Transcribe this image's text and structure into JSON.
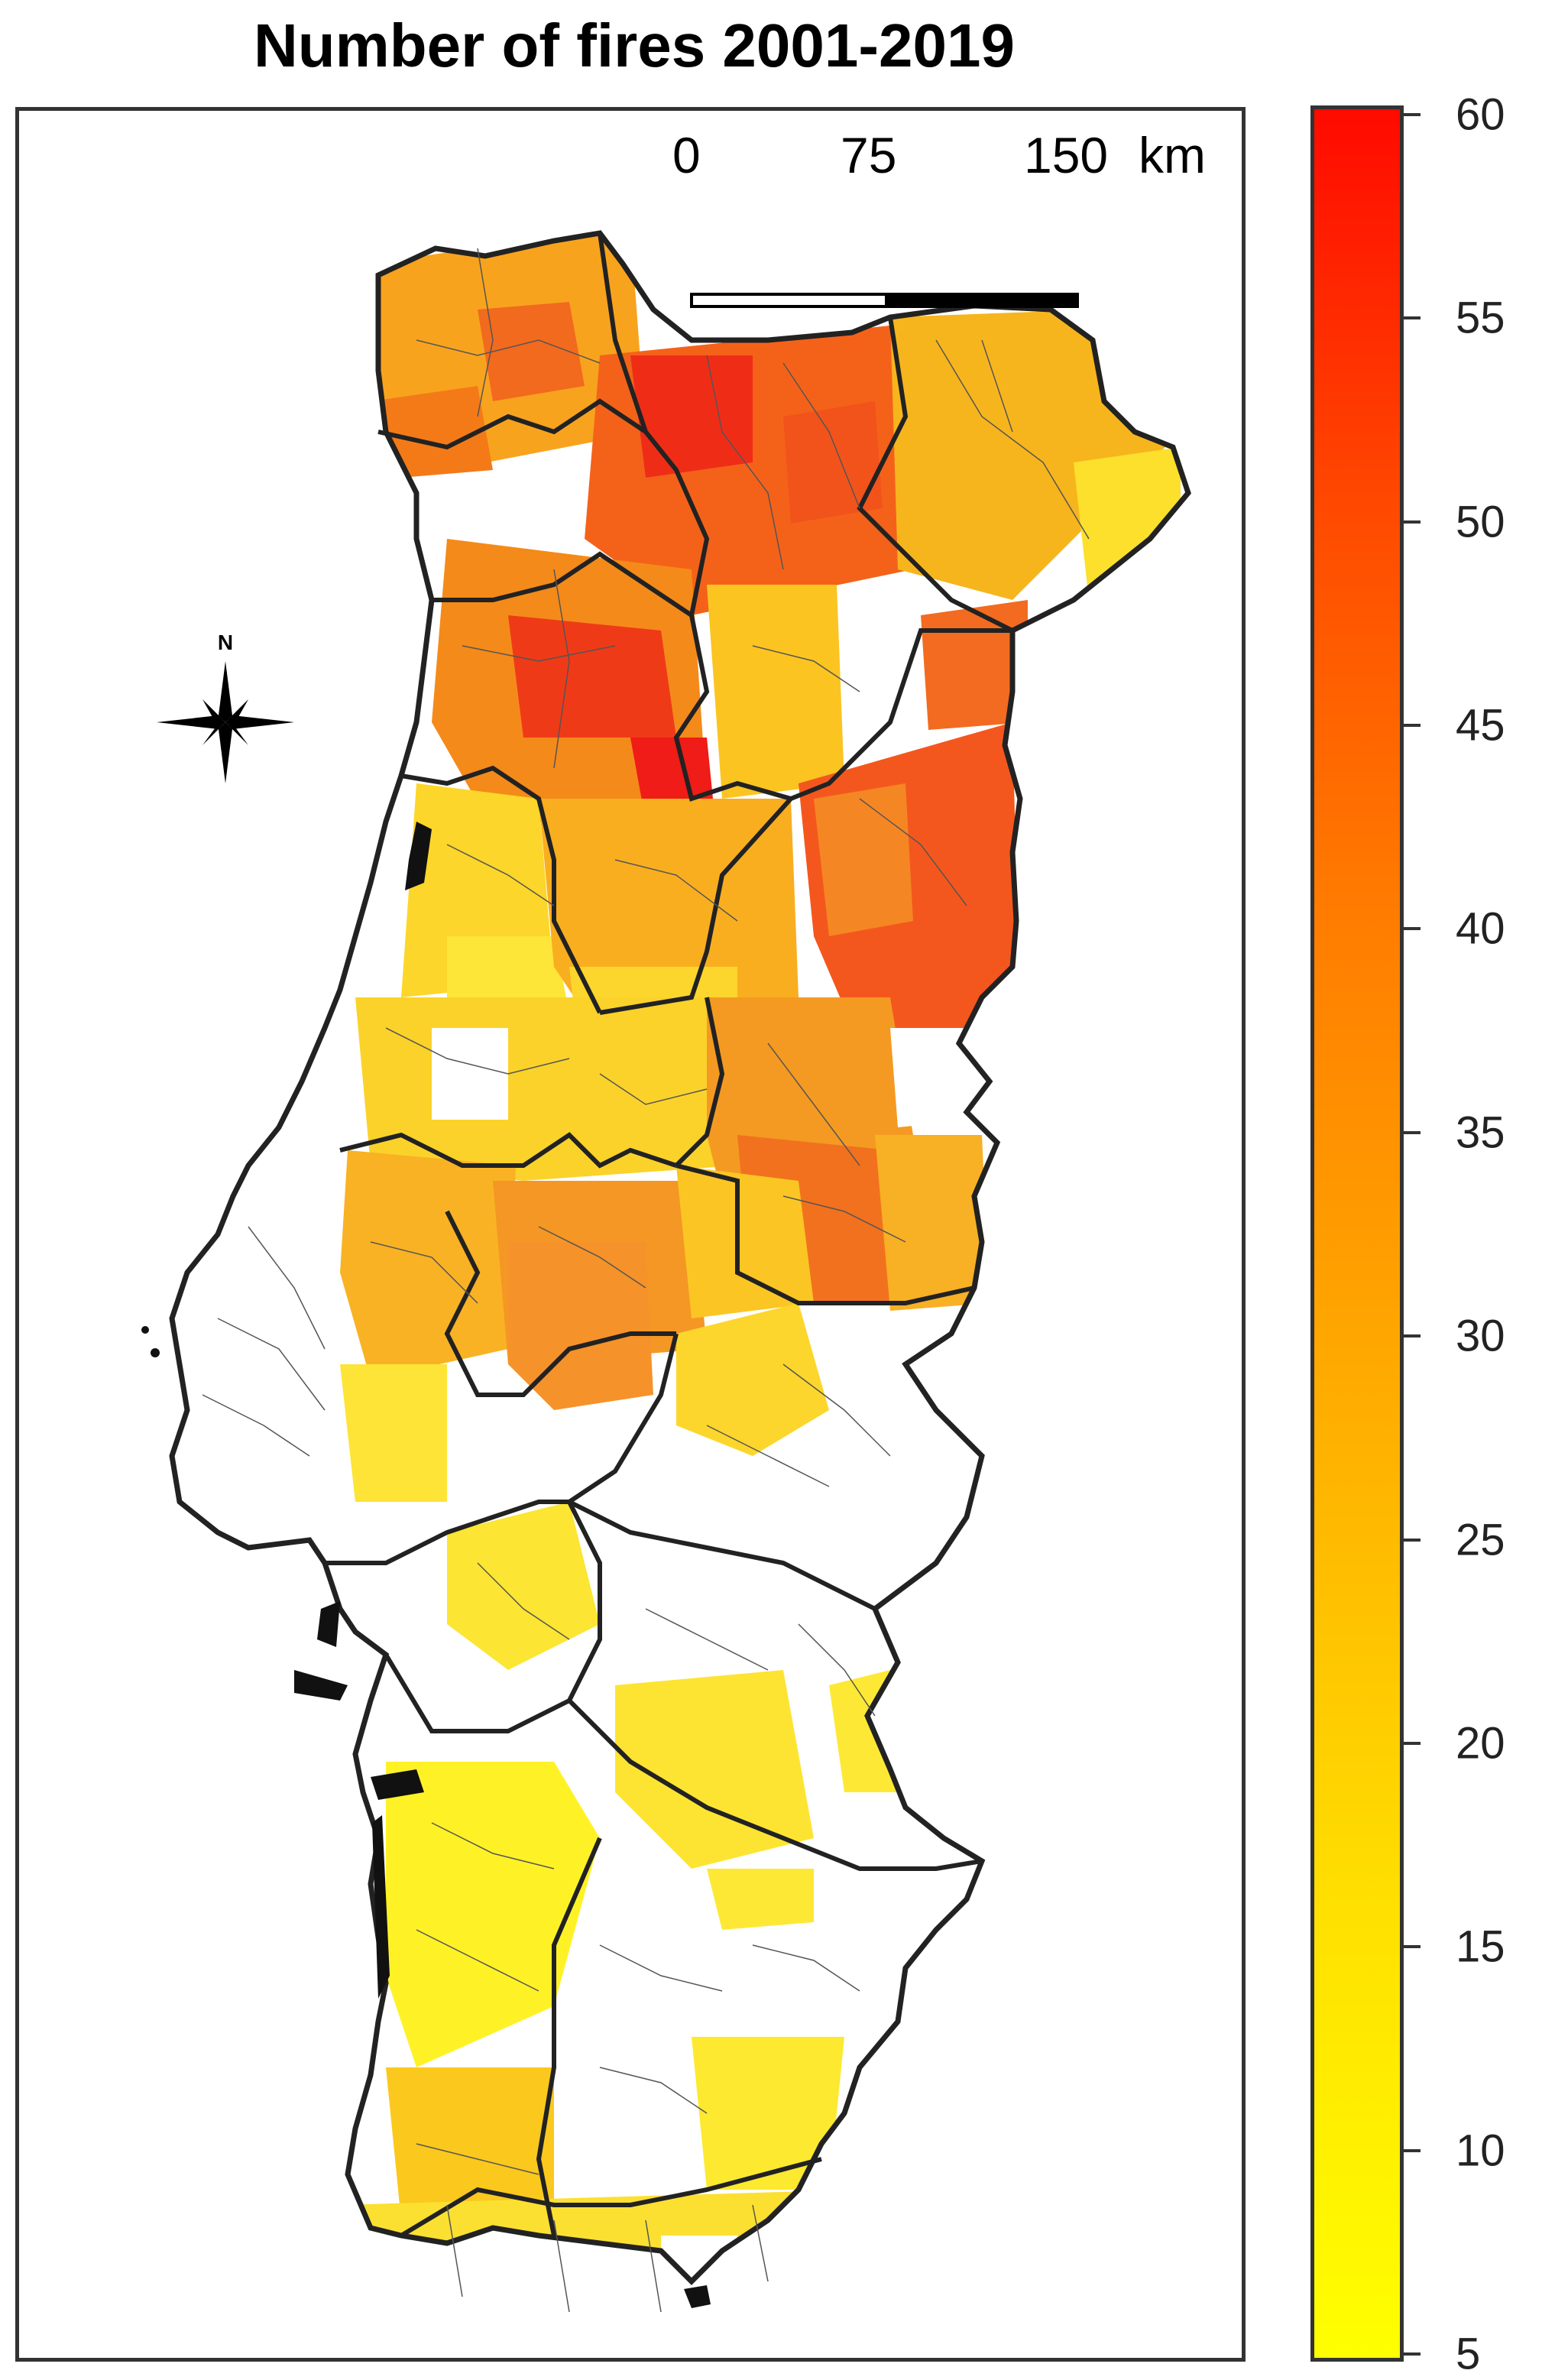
{
  "title": "Number of fires 2001-2019",
  "scale_bar": {
    "labels": [
      "0",
      "75",
      "150"
    ],
    "unit": "km"
  },
  "north_arrow": {
    "label": "N",
    "icon": "compass-star-icon"
  },
  "colorbar": {
    "min": 5,
    "max": 60,
    "ticks": [
      "60",
      "55",
      "50",
      "45",
      "40",
      "35",
      "30",
      "25",
      "20",
      "15",
      "10",
      "5"
    ],
    "colors": [
      "#ffff00",
      "#ffd400",
      "#ffa500",
      "#ff7f00",
      "#ff4c00",
      "#ff0000"
    ]
  },
  "legend_meaning": "fire count color scale"
}
